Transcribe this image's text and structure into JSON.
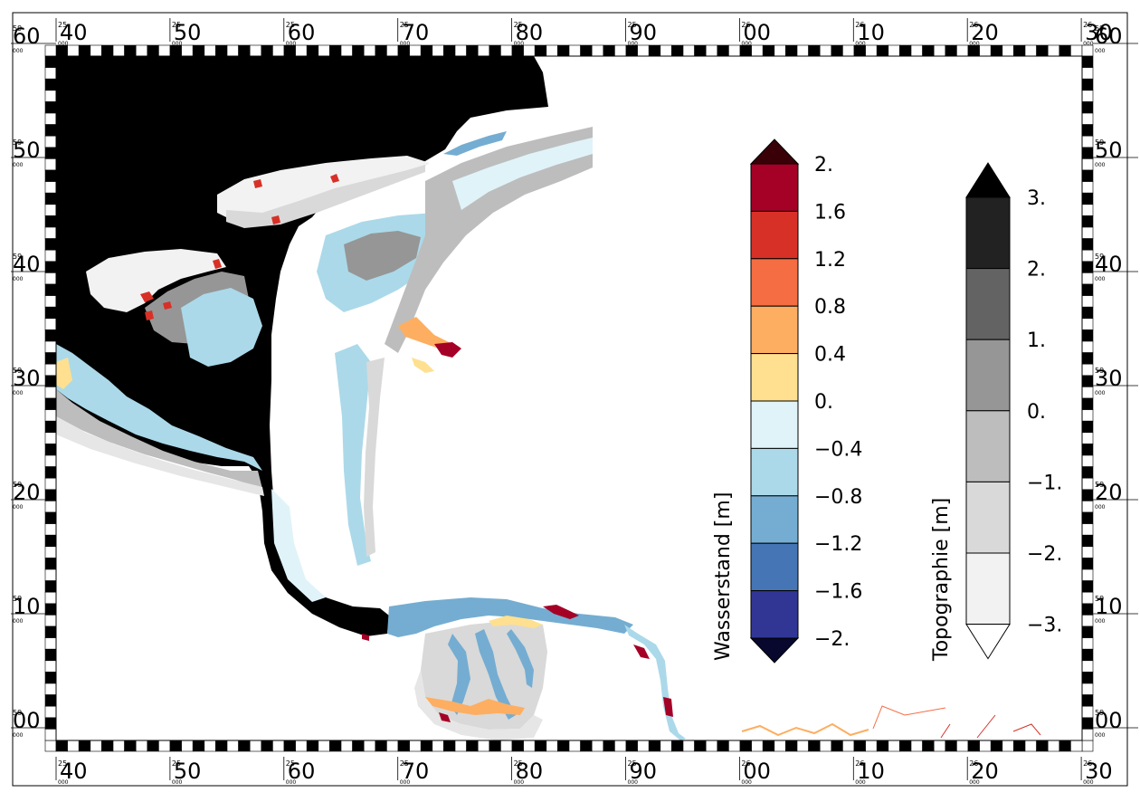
{
  "map": {
    "x_axis": {
      "ticks": [
        {
          "prefix": "25",
          "value": "40"
        },
        {
          "prefix": "25",
          "value": "50"
        },
        {
          "prefix": "25",
          "value": "60"
        },
        {
          "prefix": "25",
          "value": "70"
        },
        {
          "prefix": "25",
          "value": "80"
        },
        {
          "prefix": "25",
          "value": "90"
        },
        {
          "prefix": "26",
          "value": "00"
        },
        {
          "prefix": "26",
          "value": "10"
        },
        {
          "prefix": "26",
          "value": "20"
        },
        {
          "prefix": "26",
          "value": "30"
        }
      ],
      "suffix": "000"
    },
    "y_axis": {
      "ticks": [
        {
          "prefix": "59",
          "value": "60"
        },
        {
          "prefix": "59",
          "value": "50"
        },
        {
          "prefix": "59",
          "value": "40"
        },
        {
          "prefix": "59",
          "value": "30"
        },
        {
          "prefix": "59",
          "value": "20"
        },
        {
          "prefix": "59",
          "value": "10"
        },
        {
          "prefix": "59",
          "value": "00"
        }
      ],
      "suffix": "000"
    }
  },
  "colorbar_wasserstand": {
    "label": "Wasserstand [m]",
    "tick_labels": [
      "2.",
      "1.6",
      "1.2",
      "0.8",
      "0.4",
      "0.",
      "−0.4",
      "−0.8",
      "−1.2",
      "−1.6",
      "−2."
    ],
    "colors_top_to_bottom": [
      "#a50026",
      "#d73027",
      "#f46d43",
      "#fdae61",
      "#fee090",
      "#e0f3f8",
      "#abd9e9",
      "#74add1",
      "#4575b4",
      "#313695"
    ],
    "over_color": "#3a0008",
    "under_color": "#08082e"
  },
  "colorbar_topographie": {
    "label": "Topographie [m]",
    "tick_labels": [
      "3.",
      "2.",
      "1.",
      "0.",
      "−1.",
      "−2.",
      "−3."
    ],
    "colors_top_to_bottom": [
      "#222222",
      "#636363",
      "#969696",
      "#bdbdbd",
      "#d9d9d9",
      "#f2f2f2"
    ],
    "over_color": "#000000",
    "under_color": "#ffffff"
  },
  "palette": {
    "deep_water": "#4575b4",
    "mid_water": "#74add1",
    "shallow_water": "#abd9e9",
    "very_shallow": "#e0f3f8",
    "tidal_flat_dark": "#969696",
    "tidal_flat_mid": "#bdbdbd",
    "tidal_flat_light": "#d9d9d9",
    "land_light": "#f2f2f2"
  }
}
